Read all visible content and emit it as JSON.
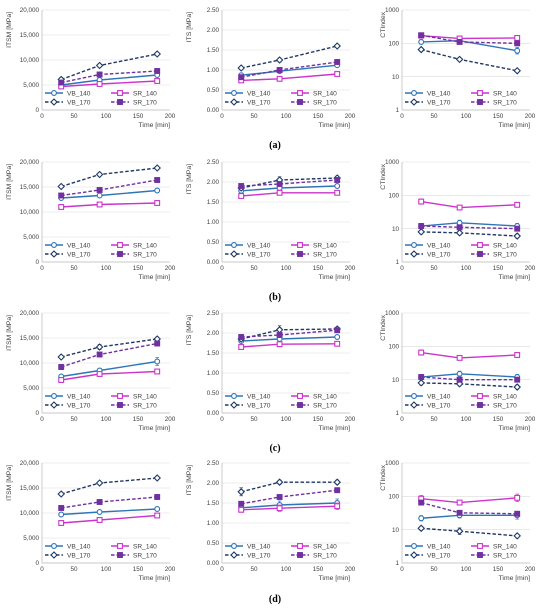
{
  "colors": {
    "VB_140": "#2e75b6",
    "VB_170": "#1f3864",
    "SR_140": "#cc33cc",
    "SR_170": "#7030a0",
    "grid": "#d9d9d9",
    "axis": "#bfbfbf"
  },
  "legend": [
    "VB_140",
    "SR_140",
    "VB_170",
    "SR_170"
  ],
  "row_labels": [
    "(a)",
    "(b)",
    "(c)",
    "(d)"
  ],
  "chart_data": [
    {
      "id": "a-itsm",
      "type": "line",
      "ylabel": "ITSM [MPa]",
      "xlabel": "Time [min]",
      "xlim": [
        0,
        200
      ],
      "xticks": [
        0,
        50,
        100,
        150,
        200
      ],
      "ylim": [
        0,
        20000
      ],
      "yticks": [
        0,
        5000,
        10000,
        15000,
        20000
      ],
      "ytick_labels": [
        "0",
        "5,000",
        "10,000",
        "15,000",
        "20,000"
      ],
      "yscale": "linear",
      "x": [
        30,
        90,
        180
      ],
      "series": [
        {
          "name": "VB_140",
          "values": [
            5000,
            6000,
            7000
          ],
          "err": [
            400,
            300,
            400
          ]
        },
        {
          "name": "SR_140",
          "values": [
            4700,
            5200,
            5800
          ],
          "err": [
            300,
            300,
            300
          ]
        },
        {
          "name": "VB_170",
          "values": [
            6100,
            8900,
            11200
          ],
          "err": [
            400,
            300,
            300
          ]
        },
        {
          "name": "SR_170",
          "values": [
            5500,
            7100,
            7800
          ],
          "err": [
            300,
            300,
            300
          ]
        }
      ]
    },
    {
      "id": "a-its",
      "type": "line",
      "ylabel": "ITS [MPa]",
      "xlabel": "Time [min]",
      "xlim": [
        0,
        200
      ],
      "xticks": [
        0,
        50,
        100,
        150,
        200
      ],
      "ylim": [
        0,
        2.5
      ],
      "yticks": [
        0,
        0.5,
        1.0,
        1.5,
        2.0,
        2.5
      ],
      "ytick_labels": [
        "0.00",
        "0.50",
        "1.00",
        "1.50",
        "2.00",
        "2.50"
      ],
      "yscale": "linear",
      "x": [
        30,
        90,
        180
      ],
      "series": [
        {
          "name": "VB_140",
          "values": [
            0.87,
            0.97,
            1.12
          ],
          "err": [
            0.05,
            0.05,
            0.05
          ]
        },
        {
          "name": "SR_140",
          "values": [
            0.74,
            0.78,
            0.9
          ],
          "err": [
            0.04,
            0.04,
            0.04
          ]
        },
        {
          "name": "VB_170",
          "values": [
            1.05,
            1.25,
            1.6
          ],
          "err": [
            0.04,
            0.05,
            0.04
          ]
        },
        {
          "name": "SR_170",
          "values": [
            0.82,
            1.0,
            1.2
          ],
          "err": [
            0.04,
            0.04,
            0.04
          ]
        }
      ]
    },
    {
      "id": "a-ct",
      "type": "line",
      "ylabel": "CTIndex",
      "xlabel": "Time [min]",
      "xlim": [
        0,
        200
      ],
      "xticks": [
        0,
        50,
        100,
        150,
        200
      ],
      "ylim": [
        1,
        1000
      ],
      "yticks": [
        1,
        10,
        100,
        1000
      ],
      "ytick_labels": [
        "1",
        "10",
        "100",
        "1000"
      ],
      "yscale": "log",
      "x": [
        30,
        90,
        180
      ],
      "series": [
        {
          "name": "VB_140",
          "values": [
            110,
            120,
            60
          ],
          "err_ratio": [
            0.18,
            0.15,
            0.25
          ]
        },
        {
          "name": "SR_140",
          "values": [
            170,
            140,
            145
          ],
          "err_ratio": [
            0.12,
            0.18,
            0.1
          ]
        },
        {
          "name": "VB_170",
          "values": [
            65,
            33,
            15
          ],
          "err_ratio": [
            0.1,
            0.1,
            0.1
          ]
        },
        {
          "name": "SR_170",
          "values": [
            175,
            110,
            100
          ],
          "err_ratio": [
            0.1,
            0.1,
            0.1
          ]
        }
      ]
    },
    {
      "id": "b-itsm",
      "type": "line",
      "ylabel": "ITSM [MPa]",
      "xlabel": "Time [min]",
      "xlim": [
        0,
        200
      ],
      "xticks": [
        0,
        50,
        100,
        150,
        200
      ],
      "ylim": [
        0,
        20000
      ],
      "yticks": [
        0,
        5000,
        10000,
        15000,
        20000
      ],
      "ytick_labels": [
        "0",
        "5,000",
        "10,000",
        "15,000",
        "20,000"
      ],
      "yscale": "linear",
      "x": [
        30,
        90,
        180
      ],
      "series": [
        {
          "name": "VB_140",
          "values": [
            12800,
            13300,
            14300
          ],
          "err": [
            300,
            300,
            400
          ]
        },
        {
          "name": "SR_140",
          "values": [
            11000,
            11500,
            11800
          ],
          "err": [
            300,
            300,
            300
          ]
        },
        {
          "name": "VB_170",
          "values": [
            15100,
            17500,
            18800
          ],
          "err": [
            300,
            300,
            300
          ]
        },
        {
          "name": "SR_170",
          "values": [
            13300,
            14400,
            16400
          ],
          "err": [
            300,
            300,
            300
          ]
        }
      ]
    },
    {
      "id": "b-its",
      "type": "line",
      "ylabel": "ITS [MPa]",
      "xlabel": "Time [min]",
      "xlim": [
        0,
        200
      ],
      "xticks": [
        0,
        50,
        100,
        150,
        200
      ],
      "ylim": [
        0,
        2.5
      ],
      "yticks": [
        0,
        0.5,
        1.0,
        1.5,
        2.0,
        2.5
      ],
      "ytick_labels": [
        "0.00",
        "0.50",
        "1.00",
        "1.50",
        "2.00",
        "2.50"
      ],
      "yscale": "linear",
      "x": [
        30,
        90,
        180
      ],
      "series": [
        {
          "name": "VB_140",
          "values": [
            1.78,
            1.85,
            1.9
          ],
          "err": [
            0.04,
            0.04,
            0.04
          ]
        },
        {
          "name": "SR_140",
          "values": [
            1.65,
            1.73,
            1.73
          ],
          "err": [
            0.03,
            0.03,
            0.03
          ]
        },
        {
          "name": "VB_170",
          "values": [
            1.85,
            2.05,
            2.1
          ],
          "err": [
            0.05,
            0.08,
            0.05
          ]
        },
        {
          "name": "SR_170",
          "values": [
            1.9,
            1.95,
            2.05
          ],
          "err": [
            0.04,
            0.04,
            0.04
          ]
        }
      ]
    },
    {
      "id": "b-ct",
      "type": "line",
      "ylabel": "CTIndex",
      "xlabel": "Time [min]",
      "xlim": [
        0,
        200
      ],
      "xticks": [
        0,
        50,
        100,
        150,
        200
      ],
      "ylim": [
        1,
        1000
      ],
      "yticks": [
        1,
        10,
        100,
        1000
      ],
      "ytick_labels": [
        "1",
        "10",
        "100",
        "1000"
      ],
      "yscale": "log",
      "x": [
        30,
        90,
        180
      ],
      "series": [
        {
          "name": "VB_140",
          "values": [
            12,
            15,
            12
          ],
          "err_ratio": [
            0.2,
            0.2,
            0.2
          ]
        },
        {
          "name": "SR_140",
          "values": [
            65,
            43,
            52
          ],
          "err_ratio": [
            0.2,
            0.15,
            0.15
          ]
        },
        {
          "name": "VB_170",
          "values": [
            8,
            7.5,
            6
          ],
          "err_ratio": [
            0.15,
            0.15,
            0.15
          ]
        },
        {
          "name": "SR_170",
          "values": [
            12,
            11,
            10
          ],
          "err_ratio": [
            0.15,
            0.15,
            0.15
          ]
        }
      ]
    },
    {
      "id": "c-itsm",
      "type": "line",
      "ylabel": "ITSM [MPa]",
      "xlabel": "Time [min]",
      "xlim": [
        0,
        200
      ],
      "xticks": [
        0,
        50,
        100,
        150,
        200
      ],
      "ylim": [
        0,
        20000
      ],
      "yticks": [
        0,
        5000,
        10000,
        15000,
        20000
      ],
      "ytick_labels": [
        "0",
        "5,000",
        "10,000",
        "15,000",
        "20,000"
      ],
      "yscale": "linear",
      "x": [
        30,
        90,
        180
      ],
      "series": [
        {
          "name": "VB_140",
          "values": [
            7300,
            8500,
            10300
          ],
          "err": [
            400,
            400,
            800
          ]
        },
        {
          "name": "SR_140",
          "values": [
            6600,
            7800,
            8300
          ],
          "err": [
            500,
            400,
            400
          ]
        },
        {
          "name": "VB_170",
          "values": [
            11200,
            13200,
            14800
          ],
          "err": [
            300,
            500,
            400
          ]
        },
        {
          "name": "SR_170",
          "values": [
            9200,
            11700,
            13900
          ],
          "err": [
            500,
            400,
            400
          ]
        }
      ]
    },
    {
      "id": "c-its",
      "type": "line",
      "ylabel": "ITS [MPa]",
      "xlabel": "Time [min]",
      "xlim": [
        0,
        200
      ],
      "xticks": [
        0,
        50,
        100,
        150,
        200
      ],
      "ylim": [
        0,
        2.5
      ],
      "yticks": [
        0,
        0.5,
        1.0,
        1.5,
        2.0,
        2.5
      ],
      "ytick_labels": [
        "0.00",
        "0.50",
        "1.00",
        "1.50",
        "2.00",
        "2.50"
      ],
      "yscale": "linear",
      "x": [
        30,
        90,
        180
      ],
      "series": [
        {
          "name": "VB_140",
          "values": [
            1.8,
            1.85,
            1.9
          ],
          "err": [
            0.04,
            0.04,
            0.04
          ]
        },
        {
          "name": "SR_140",
          "values": [
            1.65,
            1.72,
            1.73
          ],
          "err": [
            0.03,
            0.03,
            0.03
          ]
        },
        {
          "name": "VB_170",
          "values": [
            1.85,
            2.08,
            2.1
          ],
          "err": [
            0.05,
            0.1,
            0.05
          ]
        },
        {
          "name": "SR_170",
          "values": [
            1.9,
            1.95,
            2.07
          ],
          "err": [
            0.04,
            0.04,
            0.04
          ]
        }
      ]
    },
    {
      "id": "c-ct",
      "type": "line",
      "ylabel": "CTIndex",
      "xlabel": "Time [min]",
      "xlim": [
        0,
        200
      ],
      "xticks": [
        0,
        50,
        100,
        150,
        200
      ],
      "ylim": [
        1,
        1000
      ],
      "yticks": [
        1,
        10,
        100,
        1000
      ],
      "ytick_labels": [
        "1",
        "10",
        "100",
        "1000"
      ],
      "yscale": "log",
      "x": [
        30,
        90,
        180
      ],
      "series": [
        {
          "name": "VB_140",
          "values": [
            12,
            15,
            12
          ],
          "err_ratio": [
            0.2,
            0.2,
            0.2
          ]
        },
        {
          "name": "SR_140",
          "values": [
            65,
            45,
            55
          ],
          "err_ratio": [
            0.2,
            0.15,
            0.15
          ]
        },
        {
          "name": "VB_170",
          "values": [
            8,
            7.5,
            6
          ],
          "err_ratio": [
            0.15,
            0.15,
            0.15
          ]
        },
        {
          "name": "SR_170",
          "values": [
            12,
            10,
            10
          ],
          "err_ratio": [
            0.15,
            0.15,
            0.15
          ]
        }
      ]
    },
    {
      "id": "d-itsm",
      "type": "line",
      "ylabel": "ITSM [MPa]",
      "xlabel": "Time [min]",
      "xlim": [
        0,
        200
      ],
      "xticks": [
        0,
        50,
        100,
        150,
        200
      ],
      "ylim": [
        0,
        20000
      ],
      "yticks": [
        0,
        5000,
        10000,
        15000,
        20000
      ],
      "ytick_labels": [
        "0",
        "5,000",
        "10,000",
        "15,000",
        "20,000"
      ],
      "yscale": "linear",
      "x": [
        30,
        90,
        180
      ],
      "series": [
        {
          "name": "VB_140",
          "values": [
            9700,
            10200,
            10800
          ],
          "err": [
            400,
            300,
            300
          ]
        },
        {
          "name": "SR_140",
          "values": [
            8000,
            8600,
            9500
          ],
          "err": [
            300,
            300,
            300
          ]
        },
        {
          "name": "VB_170",
          "values": [
            13800,
            16000,
            17000
          ],
          "err": [
            300,
            300,
            300
          ]
        },
        {
          "name": "SR_170",
          "values": [
            11000,
            12200,
            13200
          ],
          "err": [
            300,
            300,
            300
          ]
        }
      ]
    },
    {
      "id": "d-its",
      "type": "line",
      "ylabel": "ITS [MPa]",
      "xlabel": "Time [min]",
      "xlim": [
        0,
        200
      ],
      "xticks": [
        0,
        50,
        100,
        150,
        200
      ],
      "ylim": [
        0,
        2.5
      ],
      "yticks": [
        0,
        0.5,
        1.0,
        1.5,
        2.0,
        2.5
      ],
      "ytick_labels": [
        "0.00",
        "0.50",
        "1.00",
        "1.50",
        "2.00",
        "2.50"
      ],
      "yscale": "linear",
      "x": [
        30,
        90,
        180
      ],
      "series": [
        {
          "name": "VB_140",
          "values": [
            1.38,
            1.45,
            1.5
          ],
          "err": [
            0.08,
            0.1,
            0.1
          ]
        },
        {
          "name": "SR_140",
          "values": [
            1.33,
            1.37,
            1.42
          ],
          "err": [
            0.06,
            0.08,
            0.08
          ]
        },
        {
          "name": "VB_170",
          "values": [
            1.78,
            2.02,
            2.02
          ],
          "err": [
            0.1,
            0.05,
            0.05
          ]
        },
        {
          "name": "SR_170",
          "values": [
            1.48,
            1.65,
            1.82
          ],
          "err": [
            0.05,
            0.05,
            0.05
          ]
        }
      ]
    },
    {
      "id": "d-ct",
      "type": "line",
      "ylabel": "CTIndex",
      "xlabel": "Time [min]",
      "xlim": [
        0,
        200
      ],
      "xticks": [
        0,
        50,
        100,
        150,
        200
      ],
      "ylim": [
        1,
        1000
      ],
      "yticks": [
        1,
        10,
        100,
        1000
      ],
      "ytick_labels": [
        "1",
        "10",
        "100",
        "1000"
      ],
      "yscale": "log",
      "x": [
        30,
        90,
        180
      ],
      "series": [
        {
          "name": "VB_140",
          "values": [
            22,
            27,
            27
          ],
          "err_ratio": [
            0.2,
            0.2,
            0.3
          ]
        },
        {
          "name": "SR_140",
          "values": [
            85,
            65,
            90
          ],
          "err_ratio": [
            0.25,
            0.15,
            0.3
          ]
        },
        {
          "name": "VB_170",
          "values": [
            11,
            9,
            6.5
          ],
          "err_ratio": [
            0.15,
            0.25,
            0.15
          ]
        },
        {
          "name": "SR_170",
          "values": [
            65,
            32,
            30
          ],
          "err_ratio": [
            0.15,
            0.15,
            0.15
          ]
        }
      ]
    }
  ]
}
